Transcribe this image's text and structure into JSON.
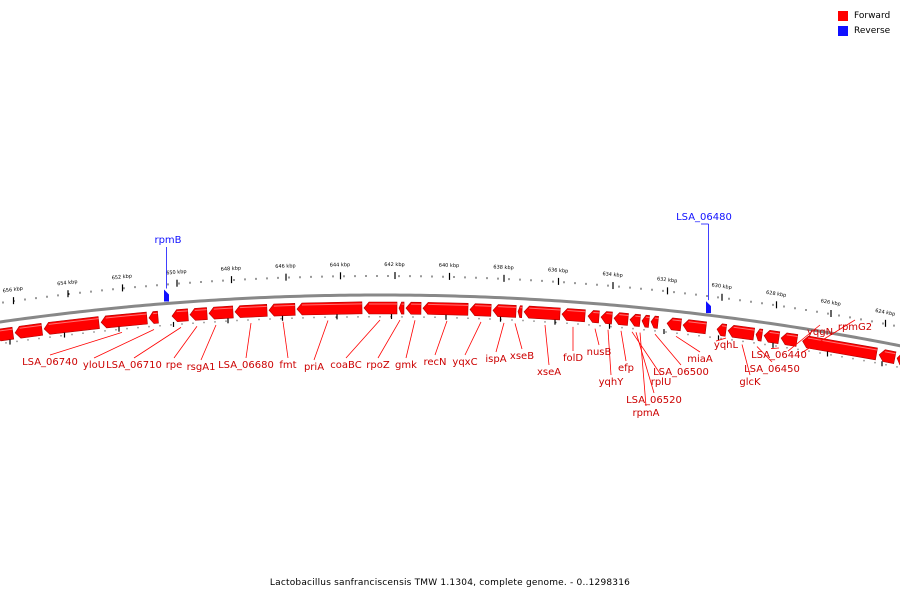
{
  "legend": {
    "forward_label": "Forward",
    "forward_color": "#ff0000",
    "reverse_label": "Reverse",
    "reverse_color": "#1010ff"
  },
  "caption": "Lactobacillus sanfranciscensis TMW 1.1304, complete genome. - 0..1298316",
  "ruler_labels": [
    "656 kbp",
    "654 kbp",
    "652 kbp",
    "650 kbp",
    "648 kbp",
    "646 kbp",
    "644 kbp",
    "642 kbp",
    "640 kbp",
    "638 kbp",
    "636 kbp",
    "634 kbp",
    "632 kbp",
    "630 kbp",
    "628 kbp",
    "626 kbp",
    "624 kbp"
  ],
  "reverse_genes": [
    "rpmB",
    "LSA_06480"
  ],
  "forward_genes": [
    "LSA_06740",
    "ylоU",
    "LSA_06710",
    "rpe",
    "rsgA1",
    "LSA_06680",
    "fmt",
    "priA",
    "coaBC",
    "rpoZ",
    "gmk",
    "recN",
    "yqxC",
    "ispA",
    "xseB",
    "xseA",
    "folD",
    "nusB",
    "yqhY",
    "efp",
    "rplU",
    "LSA_06520",
    "rpmA",
    "LSA_06500",
    "miaA",
    "yqhL",
    "glcK",
    "LSA_06450",
    "LSA_06440",
    "yqgN",
    "rpmG2"
  ]
}
